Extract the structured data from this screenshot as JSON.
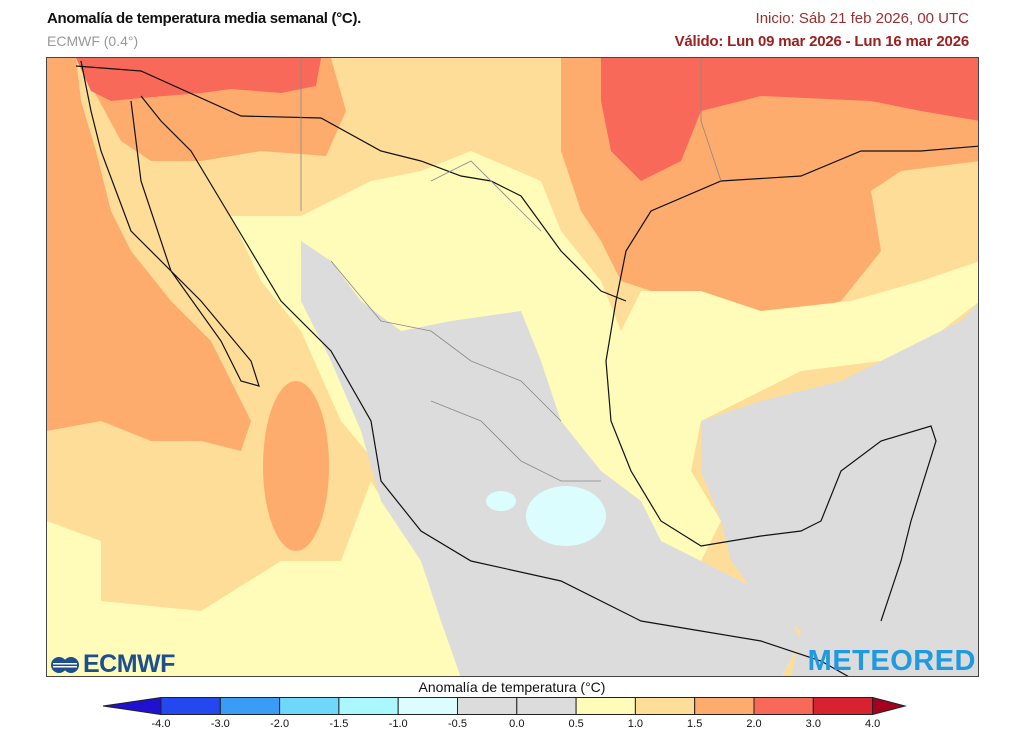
{
  "header": {
    "title": "Anomalía de temperatura media semanal (°C).",
    "model": "ECMWF (0.4°)",
    "init": "Inicio: Sáb 21 feb 2026, 00 UTC",
    "valid": "Válido: Lun 09 mar 2026 - Lun 16 mar 2026"
  },
  "map": {
    "region": "Mexico",
    "variable": "weekly mean temperature anomaly"
  },
  "logos": {
    "left": "ECMWF",
    "right": "METEORED"
  },
  "colorbar": {
    "title": "Anomalía de temperatura (°C)",
    "ticks": [
      "-4.0",
      "-3.0",
      "-2.0",
      "-1.5",
      "-1.0",
      "-0.5",
      "0.0",
      "0.5",
      "1.0",
      "1.5",
      "2.0",
      "3.0",
      "4.0"
    ],
    "colors": [
      "#2448f0",
      "#3a9cf5",
      "#6fd8fa",
      "#aaf8fd",
      "#dcfdfe",
      "#dcdcdc",
      "#dcdcdc",
      "#fefcb8",
      "#fedd98",
      "#fdac6e",
      "#f8695a",
      "#d8222f"
    ],
    "under_color": "#2010d0",
    "over_color": "#a50020"
  }
}
